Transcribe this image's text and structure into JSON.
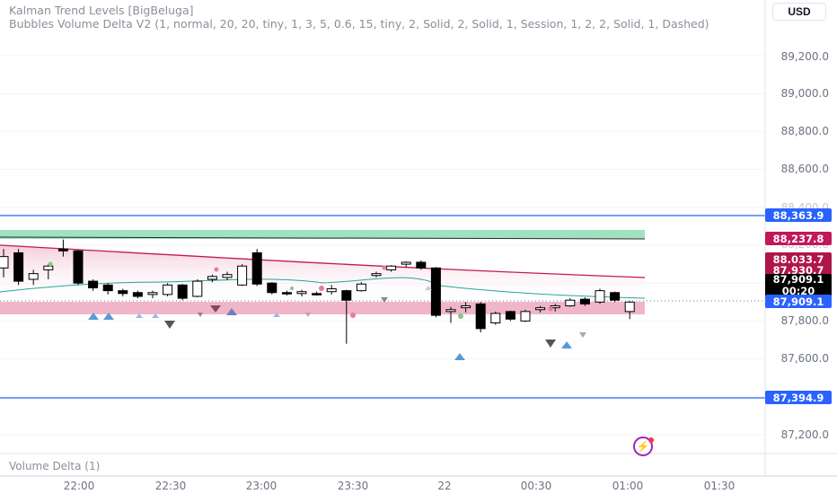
{
  "indicators": {
    "kalman": "Kalman Trend Levels [BigBeluga]",
    "bubbles": "Bubbles Volume Delta V2 (1, normal, 20, 20, tiny, 1, 3, 5, 0.6, 15, tiny, 2, Solid, 2, Solid, 1, Session, 1, 2, 2, Solid, 1, Dashed)"
  },
  "currency_button": "USD",
  "price_axis": {
    "ticks": [
      "89,200.0",
      "89,000.0",
      "88,800.0",
      "88,600.0",
      "88,400.0",
      "88,200.0",
      "87,800.0",
      "87,600.0",
      "87,200.0"
    ]
  },
  "price_badges": {
    "upper_level": "88,363.9",
    "kalman_top": "88,237.8",
    "upper_band": "88,033.7",
    "band_mid": "87,930.7",
    "last_price": "87,909.1",
    "countdown": "00:20",
    "lower_band": "87,909.1",
    "lower_level": "87,394.9"
  },
  "colors": {
    "level_line": "#2962ff",
    "kalman_top_badge": "#c2185b",
    "upper_band_badge": "#b0164a",
    "last_price_badge": "#000000",
    "green_zone": "#8fdcb6",
    "pink_zone": "#ec9cb7",
    "band_line": "#c2185b",
    "ma_line": "#26a69a",
    "up_triangle": "#5b9bd5",
    "down_triangle": "#555555"
  },
  "pane_label": "Volume Delta (1)",
  "time_axis": {
    "ticks": [
      "22:00",
      "22:30",
      "23:00",
      "23:30",
      "22",
      "00:30",
      "01:00",
      "01:30"
    ]
  },
  "chart_data": {
    "type": "candlestick",
    "title": "",
    "ylim": [
      87150,
      89300
    ],
    "levels": [
      88363.9,
      87394.9
    ],
    "green_zone": [
      88240,
      88265
    ],
    "pink_zone": [
      87860,
      87935
    ],
    "candles": [
      {
        "o": 88080,
        "h": 88180,
        "l": 88030,
        "c": 88140
      },
      {
        "o": 88160,
        "h": 88180,
        "l": 87990,
        "c": 88010
      },
      {
        "o": 88020,
        "h": 88070,
        "l": 87990,
        "c": 88050
      },
      {
        "o": 88070,
        "h": 88100,
        "l": 88020,
        "c": 88090
      },
      {
        "o": 88180,
        "h": 88230,
        "l": 88140,
        "c": 88170
      },
      {
        "o": 88170,
        "h": 88175,
        "l": 87990,
        "c": 88000
      },
      {
        "o": 88010,
        "h": 88020,
        "l": 87960,
        "c": 87975
      },
      {
        "o": 87990,
        "h": 88000,
        "l": 87940,
        "c": 87960
      },
      {
        "o": 87960,
        "h": 87970,
        "l": 87930,
        "c": 87945
      },
      {
        "o": 87950,
        "h": 87960,
        "l": 87920,
        "c": 87930
      },
      {
        "o": 87940,
        "h": 87960,
        "l": 87920,
        "c": 87950
      },
      {
        "o": 87940,
        "h": 88000,
        "l": 87930,
        "c": 87990
      },
      {
        "o": 87990,
        "h": 87995,
        "l": 87910,
        "c": 87920
      },
      {
        "o": 87930,
        "h": 88020,
        "l": 87925,
        "c": 88010
      },
      {
        "o": 88020,
        "h": 88045,
        "l": 88005,
        "c": 88035
      },
      {
        "o": 88030,
        "h": 88060,
        "l": 88015,
        "c": 88045
      },
      {
        "o": 87990,
        "h": 88100,
        "l": 87985,
        "c": 88090
      },
      {
        "o": 88160,
        "h": 88180,
        "l": 87985,
        "c": 87995
      },
      {
        "o": 88000,
        "h": 88005,
        "l": 87940,
        "c": 87950
      },
      {
        "o": 87950,
        "h": 87960,
        "l": 87935,
        "c": 87945
      },
      {
        "o": 87945,
        "h": 87965,
        "l": 87930,
        "c": 87955
      },
      {
        "o": 87945,
        "h": 87955,
        "l": 87935,
        "c": 87940
      },
      {
        "o": 87955,
        "h": 87990,
        "l": 87940,
        "c": 87970
      },
      {
        "o": 87960,
        "h": 87965,
        "l": 87680,
        "c": 87910
      },
      {
        "o": 87960,
        "h": 88005,
        "l": 87955,
        "c": 87995
      },
      {
        "o": 88040,
        "h": 88060,
        "l": 88030,
        "c": 88050
      },
      {
        "o": 88070,
        "h": 88095,
        "l": 88060,
        "c": 88090
      },
      {
        "o": 88100,
        "h": 88115,
        "l": 88085,
        "c": 88110
      },
      {
        "o": 88110,
        "h": 88120,
        "l": 88070,
        "c": 88080
      },
      {
        "o": 88080,
        "h": 88085,
        "l": 87820,
        "c": 87830
      },
      {
        "o": 87850,
        "h": 87875,
        "l": 87790,
        "c": 87860
      },
      {
        "o": 87870,
        "h": 87900,
        "l": 87845,
        "c": 87880
      },
      {
        "o": 87890,
        "h": 87900,
        "l": 87740,
        "c": 87760
      },
      {
        "o": 87790,
        "h": 87850,
        "l": 87780,
        "c": 87840
      },
      {
        "o": 87850,
        "h": 87855,
        "l": 87800,
        "c": 87810
      },
      {
        "o": 87800,
        "h": 87860,
        "l": 87795,
        "c": 87850
      },
      {
        "o": 87860,
        "h": 87880,
        "l": 87845,
        "c": 87870
      },
      {
        "o": 87870,
        "h": 87890,
        "l": 87850,
        "c": 87880
      },
      {
        "o": 87880,
        "h": 87920,
        "l": 87875,
        "c": 87910
      },
      {
        "o": 87915,
        "h": 87925,
        "l": 87880,
        "c": 87890
      },
      {
        "o": 87900,
        "h": 87970,
        "l": 87890,
        "c": 87960
      },
      {
        "o": 87950,
        "h": 87955,
        "l": 87900,
        "c": 87910
      },
      {
        "o": 87850,
        "h": 87905,
        "l": 87810,
        "c": 87900
      }
    ]
  }
}
